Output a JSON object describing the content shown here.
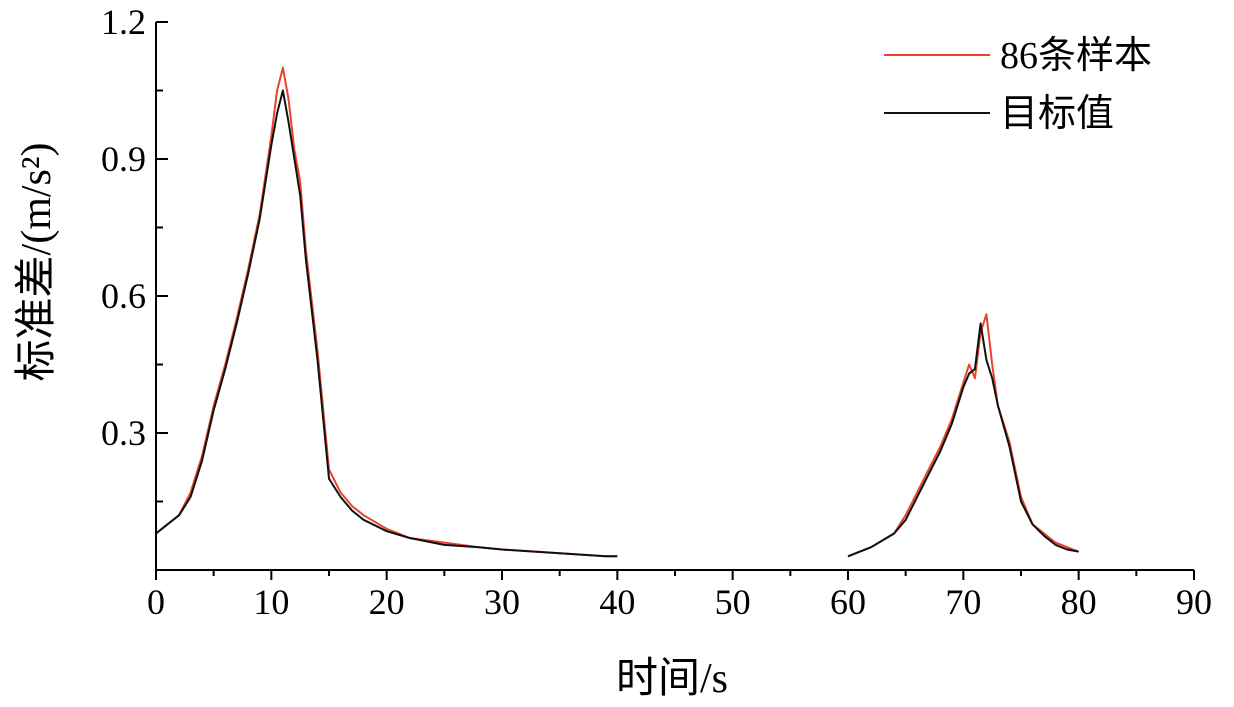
{
  "chart_data": {
    "type": "line",
    "xlabel": "时间/s",
    "ylabel": "标准差/(m/s²)",
    "xlim": [
      0,
      90
    ],
    "ylim": [
      0,
      1.2
    ],
    "xticks": [
      "0",
      "10",
      "20",
      "30",
      "40",
      "50",
      "60",
      "70",
      "80",
      "90"
    ],
    "yticks": [
      "0.3",
      "0.6",
      "0.9",
      "1.2"
    ],
    "legend_position": "top-right",
    "series": [
      {
        "name": "86条样本",
        "color": "#e8432b",
        "segments": [
          {
            "x": [
              0,
              1,
              2,
              3,
              4,
              5,
              6,
              7,
              8,
              9,
              10,
              10.5,
              11,
              11.5,
              12,
              12.5,
              13,
              14,
              15,
              16,
              17,
              18,
              20,
              22,
              25,
              28,
              30,
              33,
              36,
              39,
              40
            ],
            "y": [
              0.08,
              0.1,
              0.12,
              0.17,
              0.25,
              0.36,
              0.45,
              0.55,
              0.66,
              0.78,
              0.95,
              1.05,
              1.1,
              1.03,
              0.92,
              0.85,
              0.7,
              0.48,
              0.22,
              0.17,
              0.14,
              0.12,
              0.09,
              0.07,
              0.06,
              0.05,
              0.045,
              0.04,
              0.035,
              0.03,
              0.03
            ]
          },
          {
            "x": [
              60,
              62,
              64,
              65,
              66,
              67,
              68,
              69,
              70,
              70.5,
              71,
              71.5,
              72,
              72.5,
              73,
              74,
              75,
              76,
              77,
              78,
              79,
              80
            ],
            "y": [
              0.03,
              0.05,
              0.08,
              0.12,
              0.17,
              0.22,
              0.27,
              0.33,
              0.41,
              0.45,
              0.42,
              0.52,
              0.56,
              0.45,
              0.36,
              0.28,
              0.16,
              0.1,
              0.08,
              0.06,
              0.05,
              0.04
            ]
          }
        ]
      },
      {
        "name": "目标值",
        "color": "#111111",
        "segments": [
          {
            "x": [
              0,
              1,
              2,
              3,
              4,
              5,
              6,
              7,
              8,
              9,
              10,
              10.5,
              11,
              11.5,
              12,
              12.5,
              13,
              14,
              15,
              16,
              17,
              18,
              20,
              22,
              25,
              28,
              30,
              33,
              36,
              39,
              40
            ],
            "y": [
              0.08,
              0.1,
              0.12,
              0.16,
              0.24,
              0.35,
              0.44,
              0.54,
              0.65,
              0.77,
              0.93,
              1.0,
              1.05,
              0.98,
              0.9,
              0.82,
              0.68,
              0.46,
              0.2,
              0.16,
              0.13,
              0.11,
              0.085,
              0.07,
              0.055,
              0.05,
              0.045,
              0.04,
              0.035,
              0.03,
              0.03
            ]
          },
          {
            "x": [
              60,
              62,
              64,
              65,
              66,
              67,
              68,
              69,
              70,
              70.5,
              71,
              71.5,
              72,
              72.5,
              73,
              74,
              75,
              76,
              77,
              78,
              79,
              80
            ],
            "y": [
              0.03,
              0.05,
              0.08,
              0.11,
              0.16,
              0.21,
              0.26,
              0.32,
              0.4,
              0.43,
              0.44,
              0.54,
              0.46,
              0.42,
              0.36,
              0.27,
              0.15,
              0.1,
              0.075,
              0.055,
              0.045,
              0.04
            ]
          }
        ]
      }
    ]
  }
}
